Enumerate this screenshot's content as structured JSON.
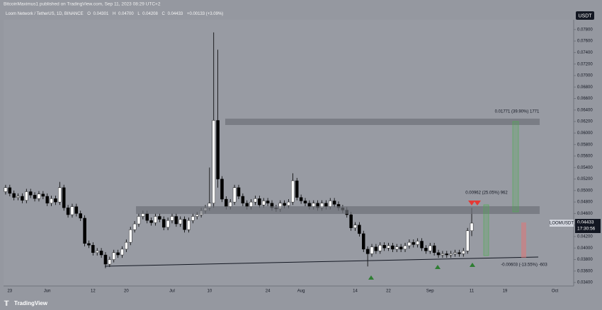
{
  "publisher": "BitcoinMaximus1 published on TradingView.com, Sep 11, 2023 08:29 UTC+2",
  "header": {
    "symbol": "Loom Network / TetherUS, 1D, BINANCE",
    "o_label": "O",
    "o": "0.04301",
    "h_label": "H",
    "h": "0.04700",
    "l_label": "L",
    "l": "0.04208",
    "c_label": "C",
    "c": "0.04433",
    "change": "+0.00133 (+3.09%)"
  },
  "currency_button": "USDT",
  "price_tag": {
    "symbol": "LOOMUSDT",
    "price": "0.04433",
    "countdown": "17:30:56"
  },
  "annotations": {
    "upper_target": "0.01771 (39.90%) 1771",
    "short_target": "0.00962 (25.05%) 962",
    "downside": "-0.00603 (-13.55%) -603"
  },
  "footer": "TradingView",
  "chart_data": {
    "type": "candlestick",
    "up_color": "#ffffff",
    "down_color": "#000000",
    "categories": [
      null,
      "23",
      null,
      null,
      null,
      null,
      null,
      null,
      null,
      null,
      "Jun",
      null,
      null,
      null,
      null,
      null,
      null,
      null,
      null,
      null,
      null,
      "12",
      null,
      null,
      null,
      null,
      null,
      null,
      null,
      "20",
      null,
      null,
      null,
      null,
      null,
      null,
      null,
      null,
      null,
      null,
      "Jul",
      null,
      null,
      null,
      null,
      null,
      null,
      null,
      null,
      "10",
      null,
      null,
      null,
      null,
      null,
      null,
      null,
      null,
      null,
      null,
      null,
      null,
      null,
      "24",
      null,
      null,
      null,
      null,
      null,
      null,
      null,
      "Aug",
      null,
      null,
      null,
      null,
      null,
      null,
      null,
      null,
      null,
      null,
      null,
      null,
      "14",
      null,
      null,
      null,
      null,
      null,
      null,
      null,
      "22",
      null,
      null,
      null,
      null,
      null,
      null,
      null,
      null,
      null,
      "Sep",
      null,
      null,
      null,
      null,
      null,
      null,
      null,
      null,
      null,
      "11",
      null,
      null,
      null,
      null,
      null,
      null,
      null,
      "19",
      null,
      null,
      null,
      null,
      null,
      null,
      null,
      null,
      null,
      null,
      null,
      "Oct",
      null,
      null,
      null,
      null
    ],
    "open": [
      0.0498,
      0.0505,
      0.0495,
      0.0488,
      0.049,
      0.0483,
      0.0498,
      0.0492,
      0.0486,
      0.0494,
      0.049,
      0.0478,
      0.0486,
      0.048,
      0.0505,
      0.047,
      0.0458,
      0.0472,
      0.046,
      0.0452,
      0.0408,
      0.0405,
      0.0392,
      0.0395,
      0.0388,
      0.0372,
      0.038,
      0.0392,
      0.0388,
      0.0398,
      0.041,
      0.0432,
      0.0442,
      0.0455,
      0.046,
      0.0448,
      0.0444,
      0.0455,
      0.045,
      0.0436,
      0.0448,
      0.0455,
      0.0442,
      0.045,
      0.0432,
      0.0448,
      0.0455,
      0.0458,
      0.0465,
      0.047,
      0.0478,
      0.0622,
      0.052,
      0.0485,
      0.0472,
      0.048,
      0.0505,
      0.049,
      0.0478,
      0.0472,
      0.048,
      0.0486,
      0.0475,
      0.0482,
      0.0478,
      0.047,
      0.0468,
      0.0478,
      0.0474,
      0.048,
      0.0517,
      0.0488,
      0.0482,
      0.0478,
      0.0472,
      0.0478,
      0.047,
      0.0478,
      0.0472,
      0.0482,
      0.0476,
      0.047,
      0.0466,
      0.0458,
      0.0435,
      0.044,
      0.0425,
      0.0398,
      0.039,
      0.0402,
      0.0395,
      0.0405,
      0.04,
      0.0404,
      0.0398,
      0.0402,
      0.0398,
      0.0404,
      0.041,
      0.0406,
      0.0412,
      0.04,
      0.0395,
      0.0404,
      0.0392,
      0.0388,
      0.039,
      0.0388,
      0.039,
      0.0392,
      0.039,
      0.0395,
      0.04301,
      null,
      null,
      null,
      null,
      null,
      null,
      null,
      null,
      null,
      null,
      null,
      null,
      null,
      null,
      null,
      null,
      null,
      null,
      null,
      null,
      null,
      null,
      null,
      null
    ],
    "high": [
      0.051,
      0.051,
      0.05,
      0.0495,
      0.0495,
      0.0503,
      0.0503,
      0.0497,
      0.0499,
      0.0499,
      0.0495,
      0.0491,
      0.0491,
      0.0515,
      0.051,
      0.0475,
      0.0477,
      0.0477,
      0.0465,
      0.0457,
      0.0413,
      0.041,
      0.04,
      0.04,
      0.0393,
      0.0385,
      0.0397,
      0.0397,
      0.0403,
      0.0415,
      0.0437,
      0.0447,
      0.046,
      0.0465,
      0.0465,
      0.0453,
      0.046,
      0.046,
      0.0455,
      0.0453,
      0.046,
      0.046,
      0.0455,
      0.0455,
      0.0453,
      0.046,
      0.0463,
      0.047,
      0.0475,
      0.054,
      0.0775,
      0.0745,
      0.0525,
      0.049,
      0.0485,
      0.051,
      0.051,
      0.0495,
      0.0483,
      0.0485,
      0.0491,
      0.0491,
      0.0487,
      0.0487,
      0.0483,
      0.0475,
      0.0483,
      0.0483,
      0.0485,
      0.053,
      0.0522,
      0.0493,
      0.0487,
      0.0483,
      0.0483,
      0.0483,
      0.0483,
      0.0483,
      0.0487,
      0.0487,
      0.0481,
      0.0475,
      0.0471,
      0.0463,
      0.0445,
      0.0445,
      0.043,
      0.0403,
      0.0407,
      0.0407,
      0.041,
      0.041,
      0.0409,
      0.0409,
      0.0407,
      0.0407,
      0.0409,
      0.0415,
      0.0415,
      0.0417,
      0.0417,
      0.0405,
      0.0409,
      0.0409,
      0.0397,
      0.0395,
      0.0395,
      0.0395,
      0.0397,
      0.0397,
      0.04,
      0.0435,
      0.047,
      null,
      null,
      null,
      null,
      null,
      null,
      null,
      null,
      null,
      null,
      null,
      null,
      null,
      null,
      null,
      null,
      null,
      null,
      null,
      null,
      null,
      null,
      null,
      null
    ],
    "low": [
      0.0493,
      0.049,
      0.0483,
      0.0483,
      0.0478,
      0.0478,
      0.0487,
      0.0481,
      0.0481,
      0.0485,
      0.0473,
      0.0473,
      0.0475,
      0.0475,
      0.0465,
      0.0453,
      0.0453,
      0.0455,
      0.0447,
      0.0403,
      0.04,
      0.0387,
      0.0387,
      0.0383,
      0.0365,
      0.0367,
      0.0375,
      0.0383,
      0.0383,
      0.0393,
      0.0405,
      0.0427,
      0.0437,
      0.045,
      0.0443,
      0.0439,
      0.0439,
      0.0445,
      0.0431,
      0.0431,
      0.0443,
      0.0437,
      0.0437,
      0.0427,
      0.0427,
      0.0443,
      0.045,
      0.0453,
      0.046,
      0.0465,
      0.047,
      0.0505,
      0.048,
      0.0467,
      0.0467,
      0.0475,
      0.0485,
      0.0473,
      0.0467,
      0.0467,
      0.0475,
      0.047,
      0.047,
      0.0473,
      0.0465,
      0.0463,
      0.0463,
      0.0469,
      0.0469,
      0.0475,
      0.0483,
      0.0477,
      0.0473,
      0.0467,
      0.0467,
      0.0465,
      0.0465,
      0.0467,
      0.0467,
      0.0471,
      0.0465,
      0.0461,
      0.0453,
      0.043,
      0.043,
      0.042,
      0.0393,
      0.0368,
      0.0385,
      0.039,
      0.039,
      0.0395,
      0.0395,
      0.0393,
      0.0393,
      0.0393,
      0.0393,
      0.0399,
      0.0401,
      0.0401,
      0.0395,
      0.039,
      0.039,
      0.0387,
      0.0383,
      0.0383,
      0.0383,
      0.0383,
      0.0385,
      0.0385,
      0.0385,
      0.039,
      0.04208,
      null,
      null,
      null,
      null,
      null,
      null,
      null,
      null,
      null,
      null,
      null,
      null,
      null,
      null,
      null,
      null,
      null,
      null,
      null,
      null,
      null,
      null,
      null,
      null
    ],
    "close": [
      0.0505,
      0.0495,
      0.0488,
      0.049,
      0.0483,
      0.0498,
      0.0492,
      0.0486,
      0.0494,
      0.049,
      0.0478,
      0.0486,
      0.048,
      0.0505,
      0.047,
      0.0458,
      0.0472,
      0.046,
      0.0452,
      0.0408,
      0.0405,
      0.0392,
      0.0395,
      0.0388,
      0.0372,
      0.038,
      0.0392,
      0.0388,
      0.0398,
      0.041,
      0.0432,
      0.0442,
      0.0455,
      0.046,
      0.0448,
      0.0444,
      0.0455,
      0.045,
      0.0436,
      0.0448,
      0.0455,
      0.0442,
      0.045,
      0.0432,
      0.0448,
      0.0455,
      0.0458,
      0.0465,
      0.047,
      0.0478,
      0.0622,
      0.052,
      0.0485,
      0.0472,
      0.048,
      0.0505,
      0.049,
      0.0478,
      0.0472,
      0.048,
      0.0486,
      0.0475,
      0.0482,
      0.0478,
      0.047,
      0.0468,
      0.0478,
      0.0474,
      0.048,
      0.0517,
      0.0488,
      0.0482,
      0.0478,
      0.0472,
      0.0478,
      0.047,
      0.0478,
      0.0472,
      0.0482,
      0.0476,
      0.047,
      0.0466,
      0.0458,
      0.0435,
      0.044,
      0.0425,
      0.0398,
      0.039,
      0.0402,
      0.0395,
      0.0405,
      0.04,
      0.0404,
      0.0398,
      0.0402,
      0.0398,
      0.0404,
      0.041,
      0.0406,
      0.0412,
      0.04,
      0.0395,
      0.0404,
      0.0392,
      0.0388,
      0.039,
      0.0388,
      0.039,
      0.0392,
      0.039,
      0.0395,
      0.043,
      0.04433,
      null,
      null,
      null,
      null,
      null,
      null,
      null,
      null,
      null,
      null,
      null,
      null,
      null,
      null,
      null,
      null,
      null,
      null,
      null,
      null,
      null,
      null,
      null,
      null
    ],
    "ylim": [
      0.0334,
      0.0797
    ],
    "yticks": [
      {
        "value": 0.034,
        "label": "0.03400"
      },
      {
        "value": 0.036,
        "label": "0.03600"
      },
      {
        "value": 0.038,
        "label": "0.03800"
      },
      {
        "value": 0.04,
        "label": "0.04000"
      },
      {
        "value": 0.042,
        "label": "0.04200"
      },
      {
        "value": 0.044,
        "label": "0.04400"
      },
      {
        "value": 0.046,
        "label": "0.04600"
      },
      {
        "value": 0.048,
        "label": "0.04800"
      },
      {
        "value": 0.05,
        "label": "0.05000"
      },
      {
        "value": 0.052,
        "label": "0.05200"
      },
      {
        "value": 0.054,
        "label": "0.05400"
      },
      {
        "value": 0.056,
        "label": "0.05600"
      },
      {
        "value": 0.058,
        "label": "0.05800"
      },
      {
        "value": 0.06,
        "label": "0.06000"
      },
      {
        "value": 0.062,
        "label": "0.06200"
      },
      {
        "value": 0.064,
        "label": "0.06400"
      },
      {
        "value": 0.066,
        "label": "0.06600"
      },
      {
        "value": 0.068,
        "label": "0.06800"
      },
      {
        "value": 0.07,
        "label": "0.07000"
      },
      {
        "value": 0.072,
        "label": "0.07200"
      },
      {
        "value": 0.074,
        "label": "0.07400"
      },
      {
        "value": 0.076,
        "label": "0.07600"
      },
      {
        "value": 0.078,
        "label": "0.07800"
      }
    ]
  }
}
